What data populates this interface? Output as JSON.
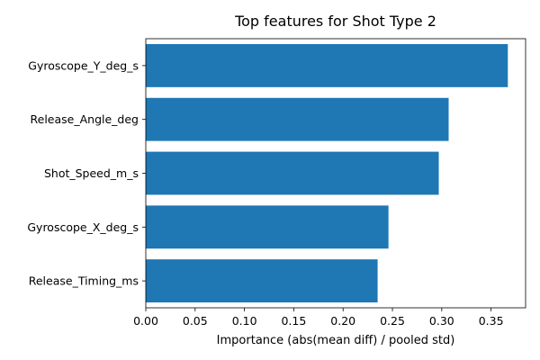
{
  "chart_data": {
    "type": "bar",
    "orientation": "horizontal",
    "title": "Top features for Shot Type 2",
    "xlabel": "Importance (abs(mean diff) / pooled std)",
    "ylabel": "",
    "categories": [
      "Gyroscope_Y_deg_s",
      "Release_Angle_deg",
      "Shot_Speed_m_s",
      "Gyroscope_X_deg_s",
      "Release_Timing_ms"
    ],
    "values": [
      0.367,
      0.307,
      0.297,
      0.246,
      0.235
    ],
    "xlim": [
      0,
      0.385
    ],
    "xticks": [
      0.0,
      0.05,
      0.1,
      0.15,
      0.2,
      0.25,
      0.3,
      0.35
    ],
    "xtick_labels": [
      "0.00",
      "0.05",
      "0.10",
      "0.15",
      "0.20",
      "0.25",
      "0.30",
      "0.35"
    ],
    "grid": false,
    "legend": "none",
    "bar_color": "#1f77b4"
  }
}
